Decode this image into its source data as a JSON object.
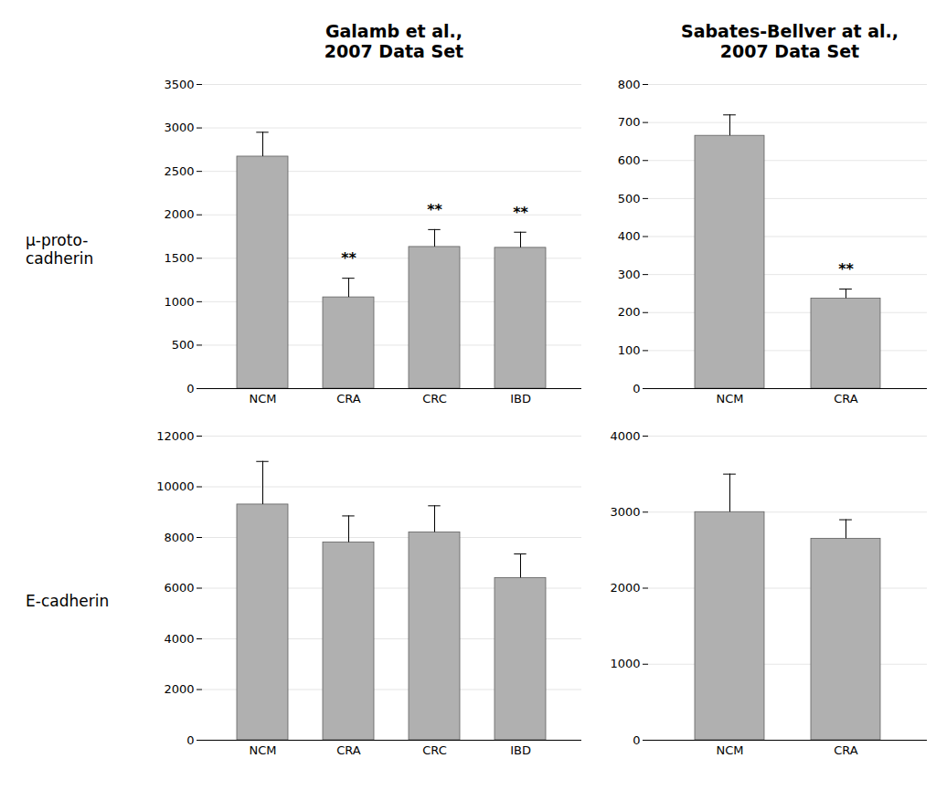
{
  "chart_data": [
    {
      "type": "bar",
      "title": "Galamb et al.,\n2007 Data Set",
      "ylabel": "μ-proto-\ncadherin",
      "categories": [
        "NCM",
        "CRA",
        "CRC",
        "IBD"
      ],
      "values": [
        2670,
        1050,
        1630,
        1620
      ],
      "errors": [
        280,
        220,
        200,
        180
      ],
      "color": "#b0b0b0",
      "ylim": [
        0,
        3500
      ],
      "yticks": [
        0,
        500,
        1000,
        1500,
        2000,
        2500,
        3000,
        3500
      ],
      "grid": true,
      "annotations": [
        {
          "category": "CRA",
          "text": "**"
        },
        {
          "category": "CRC",
          "text": "**"
        },
        {
          "category": "IBD",
          "text": "**"
        }
      ]
    },
    {
      "type": "bar",
      "title": "Sabates-Bellver at al.,\n2007 Data Set",
      "categories": [
        "NCM",
        "CRA"
      ],
      "values": [
        665,
        237
      ],
      "errors": [
        55,
        25
      ],
      "color": "#b0b0b0",
      "ylim": [
        0,
        800
      ],
      "yticks": [
        0,
        100,
        200,
        300,
        400,
        500,
        600,
        700,
        800
      ],
      "grid": true,
      "annotations": [
        {
          "category": "CRA",
          "text": "**"
        }
      ]
    },
    {
      "type": "bar",
      "ylabel": "E-cadherin",
      "categories": [
        "NCM",
        "CRA",
        "CRC",
        "IBD"
      ],
      "values": [
        9300,
        7800,
        8200,
        6400
      ],
      "errors": [
        1700,
        1050,
        1050,
        950
      ],
      "color": "#b0b0b0",
      "ylim": [
        0,
        12000
      ],
      "yticks": [
        0,
        2000,
        4000,
        6000,
        8000,
        10000,
        12000
      ],
      "grid": true
    },
    {
      "type": "bar",
      "categories": [
        "NCM",
        "CRA"
      ],
      "values": [
        3000,
        2650
      ],
      "errors": [
        500,
        250
      ],
      "color": "#b0b0b0",
      "ylim": [
        0,
        4000
      ],
      "yticks": [
        0,
        1000,
        2000,
        3000,
        4000
      ],
      "grid": true
    }
  ]
}
